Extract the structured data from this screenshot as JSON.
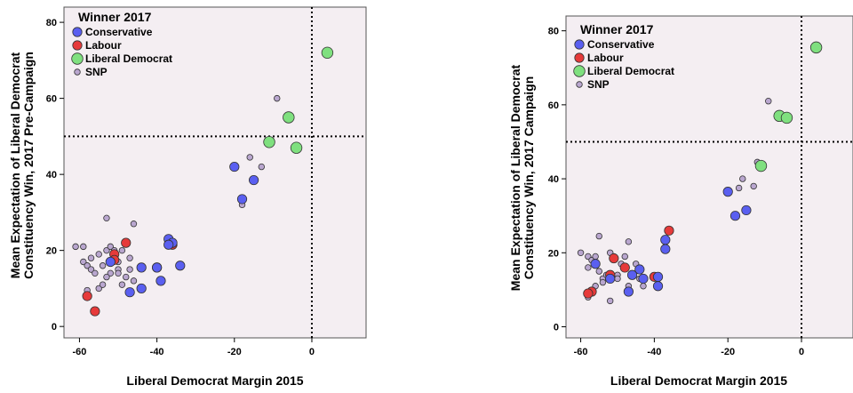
{
  "colors": {
    "plot_bg": "#f4eef2",
    "Conservative": "#5a5ff0",
    "Labour": "#e63a3a",
    "Liberal Democrat": "#7fe07f",
    "SNP": "#b9a6cf"
  },
  "chart_data": [
    {
      "type": "scatter",
      "xlabel": "Liberal Democrat  Margin 2015",
      "ylabel_lines": [
        "Mean Expectation of Liberal Democrat",
        "Constituency Win, 2017 Pre-Campaign"
      ],
      "xlim": [
        -64,
        14
      ],
      "ylim": [
        -3,
        84
      ],
      "xticks": [
        -60,
        -40,
        -20,
        0
      ],
      "yticks": [
        0,
        20,
        40,
        60,
        80
      ],
      "ref_x": 0,
      "ref_y": 50,
      "grid": false,
      "legend_title": "Winner 2017",
      "legend_position": "top-left",
      "series": [
        {
          "name": "Conservative",
          "points": [
            [
              -37,
              23
            ],
            [
              -36,
              22
            ],
            [
              -37,
              21.5
            ],
            [
              -34,
              16
            ],
            [
              -40,
              15.5
            ],
            [
              -44,
              15.5
            ],
            [
              -39,
              12
            ],
            [
              -44,
              10
            ],
            [
              -47,
              9
            ],
            [
              -20,
              42
            ],
            [
              -18,
              33.5
            ],
            [
              -15,
              38.5
            ],
            [
              -52,
              17
            ]
          ]
        },
        {
          "name": "Labour",
          "points": [
            [
              -48,
              22
            ],
            [
              -36,
              21.5
            ],
            [
              -51,
              19
            ],
            [
              -51,
              17.5
            ],
            [
              -40,
              15.5
            ],
            [
              -58,
              8
            ],
            [
              -56,
              4
            ]
          ]
        },
        {
          "name": "Liberal Democrat",
          "points": [
            [
              4,
              72
            ],
            [
              -6,
              55
            ],
            [
              -11,
              48.5
            ],
            [
              -4,
              47
            ]
          ]
        },
        {
          "name": "SNP",
          "points": [
            [
              -61,
              21
            ],
            [
              -59,
              21
            ],
            [
              -57,
              18
            ],
            [
              -59,
              17
            ],
            [
              -58,
              16
            ],
            [
              -57,
              15
            ],
            [
              -56,
              14
            ],
            [
              -55,
              19
            ],
            [
              -54,
              16
            ],
            [
              -53,
              20
            ],
            [
              -52,
              21
            ],
            [
              -51,
              20
            ],
            [
              -52,
              14
            ],
            [
              -50,
              15
            ],
            [
              -50,
              17
            ],
            [
              -49,
              20
            ],
            [
              -48,
              22
            ],
            [
              -47,
              18
            ],
            [
              -47,
              15
            ],
            [
              -46,
              12
            ],
            [
              -46,
              27
            ],
            [
              -53,
              28.5
            ],
            [
              -53,
              13
            ],
            [
              -55,
              10
            ],
            [
              -58,
              9.5
            ],
            [
              -54,
              11
            ],
            [
              -49,
              11
            ],
            [
              -50,
              14
            ],
            [
              -48,
              13
            ],
            [
              -9,
              60
            ],
            [
              -13,
              42
            ],
            [
              -16,
              44.5
            ],
            [
              -18,
              32
            ]
          ]
        }
      ]
    },
    {
      "type": "scatter",
      "xlabel": "Liberal Democrat  Margin 2015",
      "ylabel_lines": [
        "Mean Expectation of Liberal Democrat",
        "Constituency Win, 2017 Campaign"
      ],
      "xlim": [
        -64,
        14
      ],
      "ylim": [
        -3,
        84
      ],
      "xticks": [
        -60,
        -40,
        -20,
        0
      ],
      "yticks": [
        0,
        20,
        40,
        60,
        80
      ],
      "ref_x": 0,
      "ref_y": 50,
      "grid": false,
      "legend_title": "Winner 2017",
      "legend_position": "top-left",
      "series": [
        {
          "name": "Conservative",
          "points": [
            [
              -37,
              23.5
            ],
            [
              -37,
              21
            ],
            [
              -44,
              15.5
            ],
            [
              -46,
              14
            ],
            [
              -39,
              13.5
            ],
            [
              -39,
              11
            ],
            [
              -43,
              13
            ],
            [
              -47,
              9.5
            ],
            [
              -20,
              36.5
            ],
            [
              -18,
              30
            ],
            [
              -15,
              31.5
            ],
            [
              -52,
              13
            ],
            [
              -56,
              17
            ]
          ]
        },
        {
          "name": "Labour",
          "points": [
            [
              -36,
              26
            ],
            [
              -48,
              16
            ],
            [
              -51,
              18.5
            ],
            [
              -40,
              13.5
            ],
            [
              -57,
              9.5
            ],
            [
              -58,
              9
            ],
            [
              -52,
              14
            ]
          ]
        },
        {
          "name": "Liberal Democrat",
          "points": [
            [
              4,
              75.5
            ],
            [
              -6,
              57
            ],
            [
              -4,
              56.5
            ],
            [
              -11,
              43.5
            ]
          ]
        },
        {
          "name": "SNP",
          "points": [
            [
              -60,
              20
            ],
            [
              -58,
              19
            ],
            [
              -57,
              18
            ],
            [
              -56,
              19
            ],
            [
              -58,
              16
            ],
            [
              -55,
              15
            ],
            [
              -54,
              13
            ],
            [
              -53,
              14
            ],
            [
              -52,
              20
            ],
            [
              -51,
              19
            ],
            [
              -50,
              14
            ],
            [
              -49,
              17
            ],
            [
              -48,
              19
            ],
            [
              -47,
              23
            ],
            [
              -45,
              17
            ],
            [
              -44,
              13
            ],
            [
              -43,
              11
            ],
            [
              -55,
              24.5
            ],
            [
              -52,
              7
            ],
            [
              -56,
              11
            ],
            [
              -58,
              8
            ],
            [
              -50,
              13
            ],
            [
              -47,
              11
            ],
            [
              -54,
              12
            ],
            [
              -9,
              61
            ],
            [
              -12,
              44.5
            ],
            [
              -13,
              38
            ],
            [
              -17,
              37.5
            ],
            [
              -16,
              40
            ]
          ]
        }
      ]
    }
  ]
}
